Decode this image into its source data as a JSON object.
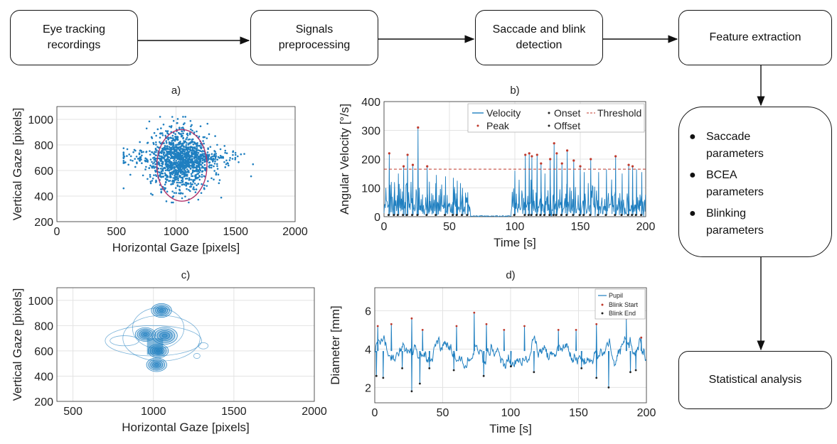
{
  "flow": {
    "step1": "Eye tracking\nrecordings",
    "step2": "Signals\npreprocessing",
    "step3": "Saccade and blink\ndetection",
    "step4": "Feature extraction",
    "step5_items": [
      "Saccade\nparameters",
      "BCEA\nparameters",
      "Blinking\nparameters"
    ],
    "step6": "Statistical analysis"
  },
  "chart_data": [
    {
      "id": "a",
      "panel_label": "a)",
      "type": "scatter",
      "xlabel": "Horizontal Gaze [pixels]",
      "ylabel": "Vertical Gaze [pixels]",
      "xlim": [
        0,
        2000
      ],
      "ylim": [
        200,
        1100
      ],
      "xticks": [
        0,
        500,
        1000,
        1500,
        2000
      ],
      "yticks": [
        200,
        400,
        600,
        800,
        1000
      ],
      "grid": true,
      "cluster": {
        "center": [
          1050,
          690
        ],
        "spread_x": 120,
        "spread_y": 110,
        "x_range": [
          560,
          1700
        ],
        "y_range": [
          350,
          1020
        ]
      },
      "ellipse": {
        "center": [
          1050,
          640
        ],
        "semi_x": 210,
        "semi_y": 280
      },
      "colors": {
        "points": "#1f7fc0",
        "ellipse": "#b0336b"
      }
    },
    {
      "id": "b",
      "panel_label": "b)",
      "type": "line",
      "xlabel": "Time [s]",
      "ylabel": "Angular Velocity [°/s]",
      "xlim": [
        0,
        200
      ],
      "ylim": [
        0,
        400
      ],
      "xticks": [
        0,
        50,
        100,
        150,
        200
      ],
      "yticks": [
        0,
        100,
        200,
        300,
        400
      ],
      "grid": true,
      "threshold": 165,
      "legend": [
        "Velocity",
        "Onset",
        "Threshold",
        "Peak",
        "Offset"
      ],
      "legend_position": "top-right",
      "peaks": [
        [
          4,
          220
        ],
        [
          8,
          120
        ],
        [
          11,
          150
        ],
        [
          15,
          175
        ],
        [
          18,
          215
        ],
        [
          22,
          180
        ],
        [
          26,
          310
        ],
        [
          33,
          175
        ],
        [
          40,
          145
        ],
        [
          47,
          140
        ],
        [
          53,
          135
        ],
        [
          56,
          125
        ],
        [
          60,
          100
        ],
        [
          64,
          85
        ],
        [
          100,
          160
        ],
        [
          108,
          215
        ],
        [
          111,
          220
        ],
        [
          113,
          210
        ],
        [
          117,
          215
        ],
        [
          120,
          185
        ],
        [
          123,
          150
        ],
        [
          127,
          200
        ],
        [
          130,
          255
        ],
        [
          132,
          220
        ],
        [
          136,
          185
        ],
        [
          140,
          230
        ],
        [
          145,
          195
        ],
        [
          150,
          175
        ],
        [
          153,
          155
        ],
        [
          158,
          200
        ],
        [
          164,
          155
        ],
        [
          170,
          165
        ],
        [
          177,
          210
        ],
        [
          182,
          150
        ],
        [
          187,
          180
        ],
        [
          190,
          175
        ],
        [
          193,
          165
        ],
        [
          197,
          155
        ]
      ],
      "colors": {
        "velocity": "#1f7fc0",
        "threshold": "#c0392b",
        "peak": "#c0392b",
        "onset": "#222222",
        "offset": "#222222"
      }
    },
    {
      "id": "c",
      "panel_label": "c)",
      "type": "heatmap",
      "xlabel": "Horizontal Gaze [pixels]",
      "ylabel": "Vertical Gaze [pixels]",
      "xlim": [
        400,
        2000
      ],
      "ylim": [
        200,
        1100
      ],
      "xticks": [
        500,
        1000,
        1500,
        2000
      ],
      "yticks": [
        200,
        400,
        600,
        800,
        1000
      ],
      "grid": true,
      "blobs": [
        [
          1050,
          920
        ],
        [
          950,
          730
        ],
        [
          1070,
          720
        ],
        [
          1030,
          600
        ],
        [
          1020,
          490
        ]
      ],
      "colors": {
        "contour": "#1f7fc0"
      }
    },
    {
      "id": "d",
      "panel_label": "d)",
      "type": "line",
      "xlabel": "Time [s]",
      "ylabel": "Diameter [mm]",
      "xlim": [
        0,
        200
      ],
      "ylim": [
        1.2,
        7.2
      ],
      "xticks": [
        0,
        50,
        100,
        150,
        200
      ],
      "yticks": [
        2,
        4,
        6
      ],
      "grid": true,
      "legend": [
        "Pupil",
        "Blink Start",
        "Blink End"
      ],
      "legend_position": "top-right",
      "baseline": 3.9,
      "spikes_up": [
        [
          2,
          5.2
        ],
        [
          12,
          5.3
        ],
        [
          27,
          5.6
        ],
        [
          35,
          5.0
        ],
        [
          60,
          5.2
        ],
        [
          73,
          5.9
        ],
        [
          82,
          5.3
        ],
        [
          95,
          5.0
        ],
        [
          110,
          5.2
        ],
        [
          135,
          5.0
        ],
        [
          148,
          5.0
        ],
        [
          163,
          5.3
        ],
        [
          185,
          5.6
        ],
        [
          196,
          4.6
        ]
      ],
      "spikes_down": [
        [
          1,
          2.6
        ],
        [
          6,
          2.5
        ],
        [
          20,
          3.0
        ],
        [
          27,
          1.8
        ],
        [
          33,
          2.2
        ],
        [
          40,
          3.0
        ],
        [
          58,
          2.9
        ],
        [
          80,
          2.6
        ],
        [
          100,
          3.1
        ],
        [
          117,
          2.8
        ],
        [
          152,
          3.0
        ],
        [
          163,
          2.5
        ],
        [
          172,
          2.0
        ],
        [
          188,
          2.8
        ],
        [
          192,
          2.9
        ]
      ],
      "colors": {
        "pupil": "#1f7fc0",
        "blink_start": "#c0392b",
        "blink_end": "#222222"
      }
    }
  ]
}
